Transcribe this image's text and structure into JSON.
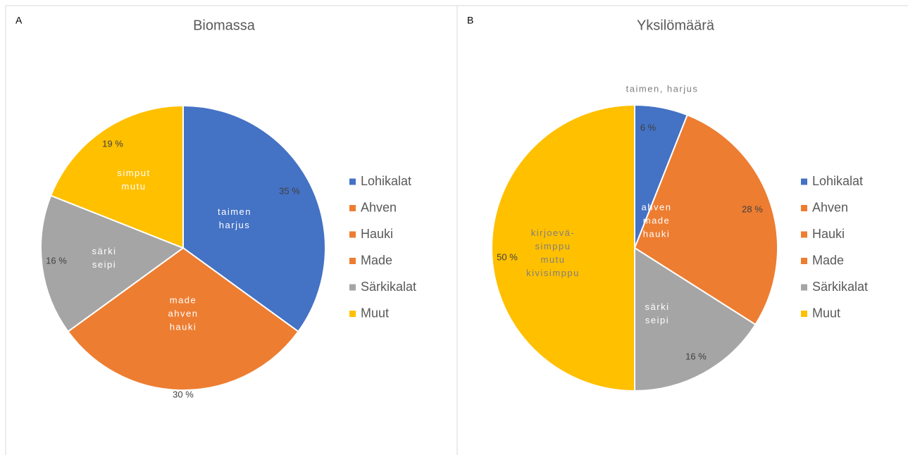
{
  "chart_data": [
    {
      "type": "pie",
      "panel": "A",
      "title": "Biomassa",
      "values": [
        35,
        30,
        16,
        19
      ],
      "value_labels": [
        "35 %",
        "30 %",
        "16 %",
        "19 %"
      ],
      "colors": [
        "#4472c4",
        "#ed7d31",
        "#a5a5a5",
        "#ffc000"
      ],
      "slice_labels": [
        [
          "taimen",
          "harjus"
        ],
        [
          "made",
          "ahven",
          "hauki"
        ],
        [
          "särki",
          "seipi"
        ],
        [
          "simput",
          "mutu"
        ]
      ],
      "legend": [
        {
          "name": "Lohikalat",
          "color": "#4472c4"
        },
        {
          "name": "Ahven",
          "color": "#ed7d31"
        },
        {
          "name": "Hauki",
          "color": "#ed7d31"
        },
        {
          "name": "Made",
          "color": "#ed7d31"
        },
        {
          "name": "Särkikalat",
          "color": "#a5a5a5"
        },
        {
          "name": "Muut",
          "color": "#ffc000"
        }
      ]
    },
    {
      "type": "pie",
      "panel": "B",
      "title": "Yksilömäärä",
      "values": [
        6,
        28,
        16,
        50
      ],
      "value_labels": [
        "6 %",
        "28 %",
        "16 %",
        "50 %"
      ],
      "colors": [
        "#4472c4",
        "#ed7d31",
        "#a5a5a5",
        "#ffc000"
      ],
      "slice_labels": [
        [
          "taimen, harjus"
        ],
        [
          "ahven",
          "made",
          "hauki"
        ],
        [
          "särki",
          "seipi"
        ],
        [
          "kirjoevä-",
          "simppu",
          "mutu",
          "kivisimppu"
        ]
      ],
      "legend": [
        {
          "name": "Lohikalat",
          "color": "#4472c4"
        },
        {
          "name": "Ahven",
          "color": "#ed7d31"
        },
        {
          "name": "Hauki",
          "color": "#ed7d31"
        },
        {
          "name": "Made",
          "color": "#ed7d31"
        },
        {
          "name": "Särkikalat",
          "color": "#a5a5a5"
        },
        {
          "name": "Muut",
          "color": "#ffc000"
        }
      ]
    }
  ]
}
